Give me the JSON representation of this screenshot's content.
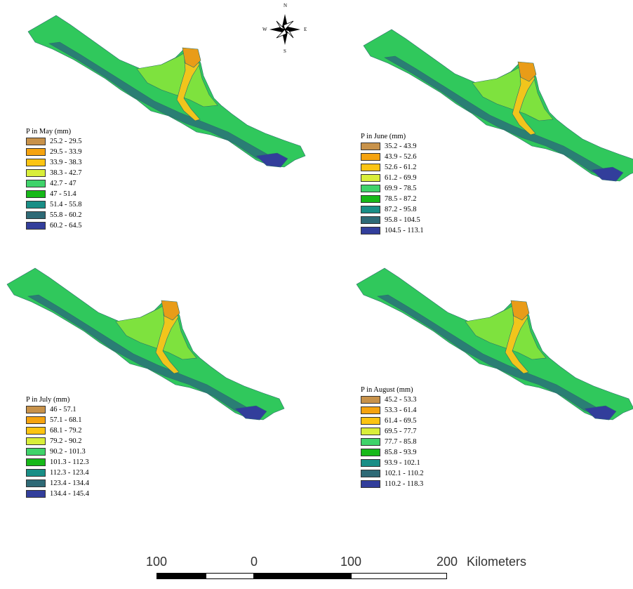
{
  "colors": {
    "c1": "#c8924a",
    "c2": "#f5a30f",
    "c3": "#fcc412",
    "c4": "#d9ee3a",
    "c5": "#3fd36a",
    "c6": "#16b818",
    "c7": "#198e86",
    "c8": "#2e6a76",
    "c9": "#323e9b",
    "basin_main": "#30c85c",
    "basin_dark": "#2a7e74",
    "basin_light": "#7ee23e",
    "basin_yellow": "#f1c51c",
    "basin_orange": "#e99c18"
  },
  "maps": [
    {
      "id": "may",
      "legend_title": "P in May (mm)",
      "classes": [
        "25.2 - 29.5",
        "29.5 - 33.9",
        "33.9 - 38.3",
        "38.3 - 42.7",
        "42.7 - 47",
        "47 - 51.4",
        "51.4 - 55.8",
        "55.8 - 60.2",
        "60.2 - 64.5"
      ]
    },
    {
      "id": "june",
      "legend_title": "P in June (mm)",
      "classes": [
        "35.2 - 43.9",
        "43.9 - 52.6",
        "52.6 - 61.2",
        "61.2 - 69.9",
        "69.9 - 78.5",
        "78.5 - 87.2",
        "87.2 - 95.8",
        "95.8 - 104.5",
        "104.5 - 113.1"
      ]
    },
    {
      "id": "july",
      "legend_title": "P in July (mm)",
      "classes": [
        "46 - 57.1",
        "57.1 - 68.1",
        "68.1 - 79.2",
        "79.2 - 90.2",
        "90.2 - 101.3",
        "101.3 - 112.3",
        "112.3 - 123.4",
        "123.4 - 134.4",
        "134.4 - 145.4"
      ]
    },
    {
      "id": "august",
      "legend_title": "P in August (mm)",
      "classes": [
        "45.2 - 53.3",
        "53.3 - 61.4",
        "61.4 - 69.5",
        "69.5 - 77.7",
        "77.7 - 85.8",
        "85.8 - 93.9",
        "93.9 - 102.1",
        "102.1 - 110.2",
        "110.2 - 118.3"
      ]
    }
  ],
  "compass": {
    "n": "N",
    "s": "S",
    "e": "E",
    "w": "W"
  },
  "scale": {
    "ticks": [
      "100",
      "0",
      "100",
      "200"
    ],
    "units": "Kilometers"
  }
}
